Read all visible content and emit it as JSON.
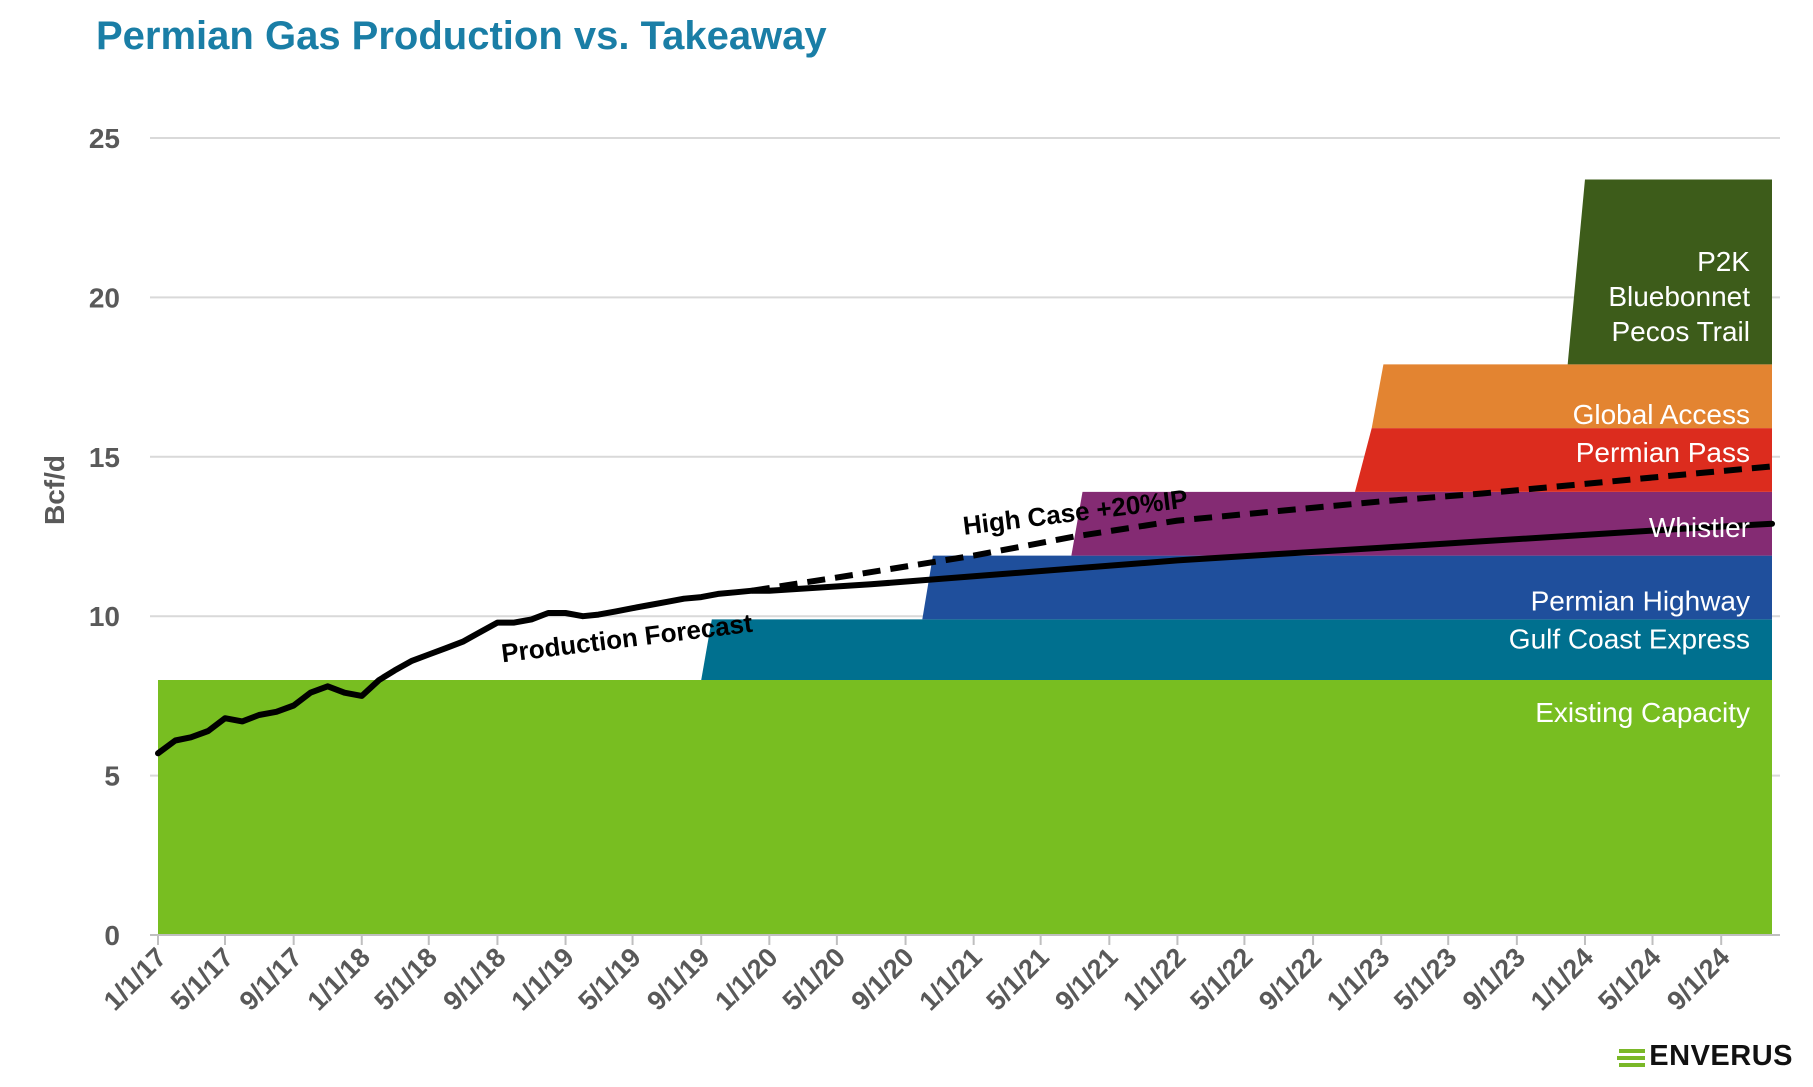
{
  "title": "Permian Gas Production vs. Takeaway",
  "logo": {
    "text": "ENVERUS",
    "accent_color": "#7ab828"
  },
  "chart_data": {
    "type": "area",
    "title": "Permian Gas Production vs. Takeaway",
    "xlabel": "",
    "ylabel": "Bcf/d",
    "ylim": [
      0,
      25
    ],
    "xlim": [
      "2017-01-01",
      "2024-12-01"
    ],
    "grid": true,
    "y_ticks": [
      0,
      5,
      10,
      15,
      20,
      25
    ],
    "x_tick_labels": [
      "1/1/17",
      "5/1/17",
      "9/1/17",
      "1/1/18",
      "5/1/18",
      "9/1/18",
      "1/1/19",
      "5/1/19",
      "9/1/19",
      "1/1/20",
      "5/1/20",
      "9/1/20",
      "1/1/21",
      "5/1/21",
      "9/1/21",
      "1/1/22",
      "5/1/22",
      "9/1/22",
      "1/1/23",
      "5/1/23",
      "9/1/23",
      "1/1/24",
      "5/1/24",
      "9/1/24"
    ],
    "x_tick_dates": [
      "2017-01-01",
      "2017-05-01",
      "2017-09-01",
      "2018-01-01",
      "2018-05-01",
      "2018-09-01",
      "2019-01-01",
      "2019-05-01",
      "2019-09-01",
      "2020-01-01",
      "2020-05-01",
      "2020-09-01",
      "2021-01-01",
      "2021-05-01",
      "2021-09-01",
      "2022-01-01",
      "2022-05-01",
      "2022-09-01",
      "2023-01-01",
      "2023-05-01",
      "2023-09-01",
      "2024-01-01",
      "2024-05-01",
      "2024-09-01"
    ],
    "capacity_segments": [
      {
        "name": "Existing Capacity",
        "color": "#78be21",
        "bottom": 0,
        "top": 8,
        "start": "2017-01-01",
        "ramp_end": "2017-01-01",
        "end": "2024-12-01",
        "label_lines": [
          "Existing Capacity"
        ]
      },
      {
        "name": "Gulf Coast Express",
        "color": "#00708f",
        "bottom": 8,
        "top": 9.9,
        "start": "2019-09-01",
        "ramp_end": "2019-09-20",
        "end": "2024-12-01",
        "label_lines": [
          "Gulf Coast Express"
        ]
      },
      {
        "name": "Permian Highway",
        "color": "#1f4f9c",
        "bottom": 9.9,
        "top": 11.9,
        "start": "2020-10-01",
        "ramp_end": "2020-10-20",
        "end": "2024-12-01",
        "label_lines": [
          "Permian Highway"
        ]
      },
      {
        "name": "Whistler",
        "color": "#842b73",
        "bottom": 11.9,
        "top": 13.9,
        "start": "2021-06-25",
        "ramp_end": "2021-07-15",
        "end": "2024-12-01",
        "label_lines": [
          "Whistler"
        ]
      },
      {
        "name": "Permian Pass",
        "color": "#dc2c1e",
        "bottom": 13.9,
        "top": 15.9,
        "start": "2022-11-15",
        "ramp_end": "2022-12-15",
        "end": "2024-12-01",
        "label_lines": [
          "Permian Pass"
        ]
      },
      {
        "name": "Global Access",
        "color": "#e38431",
        "bottom": 15.9,
        "top": 17.9,
        "start": "2022-12-15",
        "ramp_end": "2023-01-05",
        "end": "2024-12-01",
        "label_lines": [
          "Global Access"
        ]
      },
      {
        "name": "P2K Bluebonnet Pecos Trail",
        "color": "#3d5c1a",
        "bottom": 17.9,
        "top": 23.7,
        "start": "2023-12-01",
        "ramp_end": "2024-01-01",
        "end": "2024-12-01",
        "label_lines": [
          "P2K",
          "Bluebonnet",
          "Pecos Trail"
        ]
      }
    ],
    "series": [
      {
        "name": "Production Forecast",
        "style": "solid",
        "color": "#000000",
        "points": [
          [
            "2017-01-01",
            5.7
          ],
          [
            "2017-02-01",
            6.1
          ],
          [
            "2017-03-01",
            6.2
          ],
          [
            "2017-04-01",
            6.4
          ],
          [
            "2017-05-01",
            6.8
          ],
          [
            "2017-06-01",
            6.7
          ],
          [
            "2017-07-01",
            6.9
          ],
          [
            "2017-08-01",
            7.0
          ],
          [
            "2017-09-01",
            7.2
          ],
          [
            "2017-10-01",
            7.6
          ],
          [
            "2017-11-01",
            7.8
          ],
          [
            "2017-12-01",
            7.6
          ],
          [
            "2018-01-01",
            7.5
          ],
          [
            "2018-02-01",
            8.0
          ],
          [
            "2018-03-01",
            8.3
          ],
          [
            "2018-04-01",
            8.6
          ],
          [
            "2018-05-01",
            8.8
          ],
          [
            "2018-06-01",
            9.0
          ],
          [
            "2018-07-01",
            9.2
          ],
          [
            "2018-08-01",
            9.5
          ],
          [
            "2018-09-01",
            9.8
          ],
          [
            "2018-10-01",
            9.8
          ],
          [
            "2018-11-01",
            9.9
          ],
          [
            "2018-12-01",
            10.1
          ],
          [
            "2019-01-01",
            10.1
          ],
          [
            "2019-02-01",
            10.0
          ],
          [
            "2019-03-01",
            10.05
          ],
          [
            "2019-04-01",
            10.15
          ],
          [
            "2019-05-01",
            10.25
          ],
          [
            "2019-06-01",
            10.35
          ],
          [
            "2019-07-01",
            10.45
          ],
          [
            "2019-08-01",
            10.55
          ],
          [
            "2019-09-01",
            10.6
          ],
          [
            "2019-10-01",
            10.7
          ],
          [
            "2019-11-01",
            10.75
          ],
          [
            "2019-12-01",
            10.8
          ],
          [
            "2020-01-01",
            10.8
          ],
          [
            "2020-07-01",
            11.0
          ],
          [
            "2021-01-01",
            11.25
          ],
          [
            "2021-07-01",
            11.5
          ],
          [
            "2022-01-01",
            11.75
          ],
          [
            "2022-07-01",
            11.95
          ],
          [
            "2023-01-01",
            12.15
          ],
          [
            "2023-07-01",
            12.35
          ],
          [
            "2024-01-01",
            12.55
          ],
          [
            "2024-07-01",
            12.75
          ],
          [
            "2024-12-01",
            12.9
          ]
        ]
      },
      {
        "name": "High Case +20%IP",
        "style": "dashed",
        "color": "#000000",
        "points": [
          [
            "2019-12-01",
            10.8
          ],
          [
            "2020-06-01",
            11.3
          ],
          [
            "2021-01-01",
            11.9
          ],
          [
            "2021-07-01",
            12.5
          ],
          [
            "2022-01-01",
            13.0
          ],
          [
            "2022-07-01",
            13.3
          ],
          [
            "2023-01-01",
            13.6
          ],
          [
            "2023-07-01",
            13.85
          ],
          [
            "2024-01-01",
            14.15
          ],
          [
            "2024-07-01",
            14.45
          ],
          [
            "2024-12-01",
            14.7
          ]
        ]
      }
    ],
    "annotations": [
      {
        "text": "Production Forecast",
        "date": "2018-09-10",
        "y": 8.55,
        "angle": -7
      },
      {
        "text": "High Case +20%IP",
        "date": "2020-12-15",
        "y": 12.55,
        "angle": -7
      }
    ]
  }
}
